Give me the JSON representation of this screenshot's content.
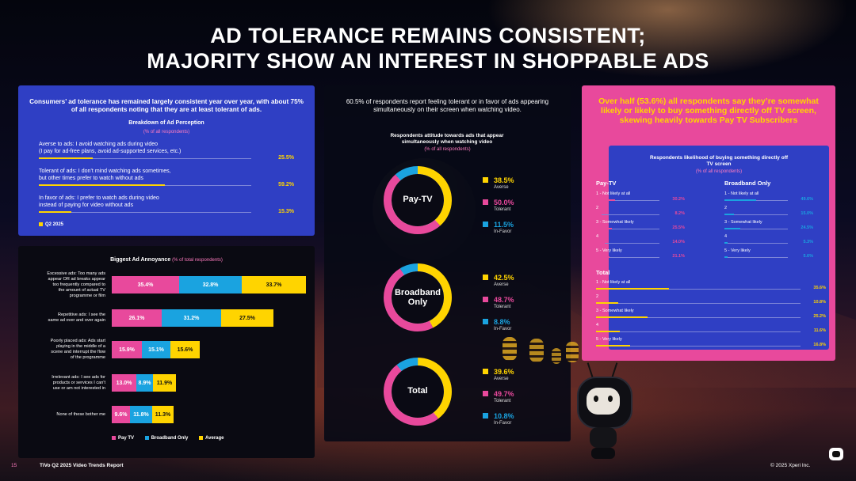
{
  "title": {
    "line1": "AD TOLERANCE REMAINS CONSISTENT;",
    "line2": "MAJORITY SHOW AN INTEREST IN SHOPPABLE ADS"
  },
  "colors": {
    "yellow": "#ffd400",
    "pink": "#e8499c",
    "cyan": "#1aa3e0",
    "blue": "#2f3fc4"
  },
  "perception": {
    "intro": "Consumers’ ad tolerance has remained largely consistent year over year, with about 75% of all respondents noting that they are at least tolerant of ads.",
    "heading": "Breakdown of Ad Perception",
    "subheading": "(% of all respondents)",
    "items": [
      {
        "l1": "Averse to ads: I avoid watching ads during video",
        "l2": "(I pay for ad-free plans, avoid ad-supported services, etc.)",
        "value": "25.5%",
        "v": 25.5
      },
      {
        "l1": "Tolerant of ads: I don’t mind watching ads sometimes,",
        "l2": "but other times prefer to watch without ads",
        "value": "59.2%",
        "v": 59.2
      },
      {
        "l1": "In favor of ads: I prefer to watch ads during video",
        "l2": "instead of paying for video without ads",
        "value": "15.3%",
        "v": 15.3
      }
    ],
    "legend": "Q2 2025"
  },
  "annoyance": {
    "heading": "Biggest Ad Annoyance",
    "subheading": "(% of total respondents)",
    "rows": [
      {
        "label": [
          "Excessive ads: Too many ads",
          "appear OR ad breaks appear",
          "too frequently compared to",
          "the amount of actual TV",
          "programme or film"
        ],
        "pay": 35.4,
        "bb": 32.8,
        "avg": 33.7,
        "payL": "35.4%",
        "bbL": "32.8%",
        "avgL": "33.7%"
      },
      {
        "label": [
          "Repetitive ads: I see the",
          "same ad over and over again"
        ],
        "pay": 26.1,
        "bb": 31.2,
        "avg": 27.5,
        "payL": "26.1%",
        "bbL": "31.2%",
        "avgL": "27.5%"
      },
      {
        "label": [
          "Poorly placed ads: Ads start",
          "playing in the middle of a",
          "scene and interrupt the flow",
          "of the programme"
        ],
        "pay": 15.9,
        "bb": 15.1,
        "avg": 15.6,
        "payL": "15.9%",
        "bbL": "15.1%",
        "avgL": "15.6%"
      },
      {
        "label": [
          "Irrelevant ads: I see ads for",
          "products or services I can't",
          "use or am not interested in"
        ],
        "pay": 13.0,
        "bb": 8.9,
        "avg": 11.9,
        "payL": "13.0%",
        "bbL": "8.9%",
        "avgL": "11.9%"
      },
      {
        "label": [
          "None of these bother me"
        ],
        "pay": 9.6,
        "bb": 11.8,
        "avg": 11.3,
        "payL": "9.6%",
        "bbL": "11.8%",
        "avgL": "11.3%"
      }
    ],
    "legend": {
      "pay": "Pay TV",
      "bb": "Broadband Only",
      "avg": "Average"
    }
  },
  "attitude": {
    "intro": "60.5% of respondents report feeling tolerant or in favor of ads appearing simultaneously on their screen when watching video.",
    "heading": "Respondents attitude towards ads that appear simultaneously when watching video",
    "subheading": "(% of all respondents)",
    "donuts": [
      {
        "name": "Pay-TV",
        "averse": 38.5,
        "tolerant": 50.0,
        "infavor": 11.5,
        "aL": "38.5%",
        "tL": "50.0%",
        "fL": "11.5%"
      },
      {
        "name": "Broadband Only",
        "averse": 42.5,
        "tolerant": 48.7,
        "infavor": 8.8,
        "aL": "42.5%",
        "tL": "48.7%",
        "fL": "8.8%"
      },
      {
        "name": "Total",
        "averse": 39.6,
        "tolerant": 49.7,
        "infavor": 10.8,
        "aL": "39.6%",
        "tL": "49.7%",
        "fL": "10.8%"
      }
    ],
    "labels": {
      "averse": "Averse",
      "tolerant": "Tolerant",
      "infavor": "In-Favor"
    }
  },
  "shoppable": {
    "headline": "Over half (53.6%) all respondents say they’re somewhat likely or likely to buy something directly off TV screen, skewing heavily towards Pay TV Subscribers",
    "heading": "Respondents likelihood of buying something directly off TV screen",
    "subheading": "(% of all respondents)",
    "paytv": {
      "title": "Pay-TV",
      "rows": [
        {
          "label": "1 - Not likely at all",
          "value": "30.2%",
          "v": 30.2
        },
        {
          "label": "2",
          "value": "8.2%",
          "v": 8.2
        },
        {
          "label": "3 - Somewhat likely",
          "value": "25.5%",
          "v": 25.5
        },
        {
          "label": "4",
          "value": "14.0%",
          "v": 14.0
        },
        {
          "label": "5 - Very likely",
          "value": "21.1%",
          "v": 21.1
        }
      ]
    },
    "broadband": {
      "title": "Broadband Only",
      "rows": [
        {
          "label": "1 - Not likely at all",
          "value": "49.6%",
          "v": 49.6
        },
        {
          "label": "2",
          "value": "15.0%",
          "v": 15.0
        },
        {
          "label": "3 - Somewhat likely",
          "value": "24.5%",
          "v": 24.5
        },
        {
          "label": "4",
          "value": "5.3%",
          "v": 5.3
        },
        {
          "label": "5 - Very likely",
          "value": "5.6%",
          "v": 5.6
        }
      ]
    },
    "total": {
      "title": "Total",
      "rows": [
        {
          "label": "1 - Not likely at all",
          "value": "35.6%",
          "v": 35.6
        },
        {
          "label": "2",
          "value": "10.8%",
          "v": 10.8
        },
        {
          "label": "3 - Somewhat likely",
          "value": "25.2%",
          "v": 25.2
        },
        {
          "label": "4",
          "value": "11.6%",
          "v": 11.6
        },
        {
          "label": "5 - Very likely",
          "value": "16.8%",
          "v": 16.8
        }
      ]
    }
  },
  "footer": {
    "page": "15",
    "report": "TiVo Q2 2025 Video Trends Report",
    "copyright": "© 2025 Xperi Inc."
  }
}
